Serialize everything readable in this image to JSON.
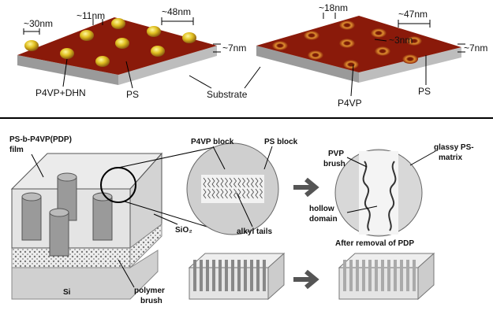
{
  "top_left": {
    "size_a": "~30nm",
    "size_b": "~11nm",
    "spacing": "~48nm",
    "thickness": "~7nm",
    "label_p4vp_dhn": "P4VP+DHN",
    "label_ps": "PS",
    "label_substrate": "Substrate"
  },
  "top_right": {
    "size_a": "~18nm",
    "spacing": "~47nm",
    "pore": "~3nm",
    "thickness": "~7nm",
    "label_p4vp": "P4VP",
    "label_ps": "PS"
  },
  "bottom": {
    "film_label": [
      "PS-b-P4VP(PDP)",
      "film"
    ],
    "sio2": "SiO₂",
    "si": "Si",
    "brush_label": [
      "polymer",
      "brush"
    ],
    "p4vp_block": "P4VP block",
    "ps_block": "PS block",
    "alkyl_tails": "alkyl tails",
    "pvp_brush": [
      "PVP",
      "brush"
    ],
    "glassy_matrix": [
      "glassy PS-",
      "matrix"
    ],
    "hollow_domain": [
      "hollow",
      "domain"
    ],
    "after_removal": "After removal of PDP"
  }
}
